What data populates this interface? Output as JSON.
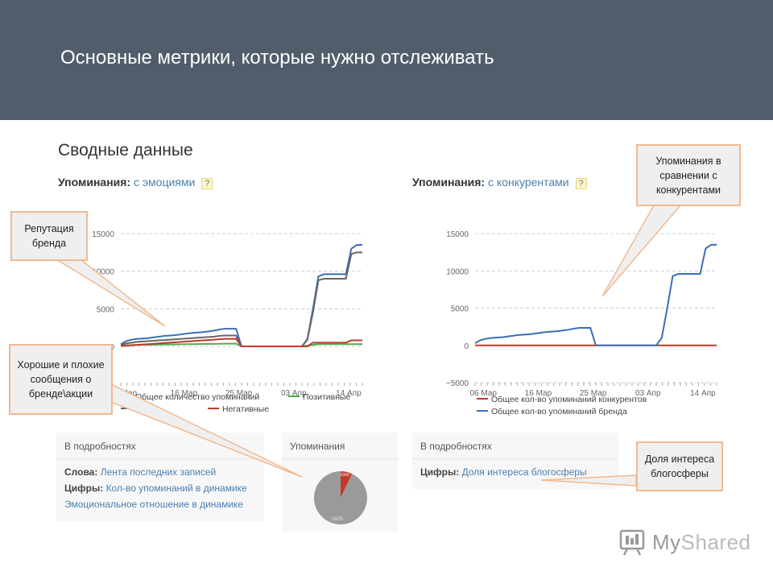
{
  "slide": {
    "title": "Основные метрики, которые нужно отслеживать",
    "panel_title": "Сводные данные"
  },
  "chart_left": {
    "heading_label": "Упоминания:",
    "heading_link": "с эмоциями",
    "help": "?"
  },
  "chart_right": {
    "heading_label": "Упоминания:",
    "heading_link": "с конкурентами",
    "help": "?"
  },
  "chart_data": [
    {
      "type": "line",
      "title": "Упоминания: с эмоциями",
      "x_ticks": [
        "Мар",
        "16 Мар",
        "25 Мар",
        "03 Апр",
        "14 Апр"
      ],
      "y_ticks": [
        "0",
        "5000",
        "10000",
        "15000"
      ],
      "ylim": [
        0,
        15000
      ],
      "x": [
        1,
        2,
        3,
        4,
        5,
        6,
        7,
        8,
        9,
        10,
        11,
        12,
        13,
        14,
        15,
        16,
        17,
        18,
        19,
        20,
        21,
        22,
        23,
        24,
        25,
        26,
        27,
        28,
        29,
        30,
        31,
        32,
        33,
        34,
        35,
        36,
        37,
        38,
        39,
        40,
        41,
        42,
        43,
        44,
        45
      ],
      "series": [
        {
          "name": "Общее количество упоминаний",
          "color": "#3a6fb7",
          "values": [
            300,
            700,
            900,
            1000,
            1050,
            1100,
            1200,
            1300,
            1400,
            1450,
            1500,
            1600,
            1700,
            1800,
            1850,
            1900,
            2000,
            2100,
            2250,
            2350,
            2350,
            2350,
            0,
            0,
            0,
            0,
            0,
            0,
            0,
            0,
            0,
            0,
            0,
            0,
            1000,
            5000,
            9300,
            9600,
            9600,
            9600,
            9600,
            9600,
            13000,
            13500,
            13500
          ]
        },
        {
          "name": "Позитивные",
          "color": "#4caf50",
          "values": [
            100,
            150,
            180,
            200,
            210,
            220,
            230,
            240,
            250,
            260,
            270,
            280,
            290,
            300,
            310,
            320,
            330,
            340,
            350,
            360,
            360,
            360,
            0,
            0,
            0,
            0,
            0,
            0,
            0,
            0,
            0,
            0,
            0,
            0,
            100,
            200,
            300,
            300,
            300,
            300,
            300,
            300,
            300,
            300,
            300
          ]
        },
        {
          "name": "Нейтральные",
          "color": "#666666",
          "values": [
            200,
            400,
            500,
            600,
            650,
            700,
            750,
            800,
            850,
            900,
            950,
            1000,
            1050,
            1100,
            1150,
            1200,
            1250,
            1300,
            1400,
            1450,
            1450,
            1450,
            0,
            0,
            0,
            0,
            0,
            0,
            0,
            0,
            0,
            0,
            0,
            0,
            900,
            4500,
            8800,
            9000,
            9000,
            9000,
            9000,
            9000,
            12300,
            12500,
            12500
          ]
        },
        {
          "name": "Негативные",
          "color": "#c0392b",
          "values": [
            50,
            100,
            150,
            200,
            250,
            300,
            350,
            400,
            450,
            500,
            550,
            600,
            650,
            700,
            750,
            800,
            850,
            900,
            950,
            1000,
            1000,
            1000,
            0,
            0,
            0,
            0,
            0,
            0,
            0,
            0,
            0,
            0,
            0,
            0,
            0,
            500,
            500,
            500,
            500,
            500,
            500,
            500,
            800,
            800,
            800
          ]
        }
      ],
      "legend": [
        "Общее количество упоминаний",
        "Позитивные",
        "Негативные"
      ]
    },
    {
      "type": "line",
      "title": "Упоминания: с конкурентами",
      "x_ticks": [
        "06 Мар",
        "16 Мар",
        "25 Мар",
        "03 Апр",
        "14 Апр"
      ],
      "y_ticks": [
        "−5000",
        "0",
        "5000",
        "10000",
        "15000"
      ],
      "ylim": [
        -5000,
        15000
      ],
      "x": [
        1,
        2,
        3,
        4,
        5,
        6,
        7,
        8,
        9,
        10,
        11,
        12,
        13,
        14,
        15,
        16,
        17,
        18,
        19,
        20,
        21,
        22,
        23,
        24,
        25,
        26,
        27,
        28,
        29,
        30,
        31,
        32,
        33,
        34,
        35,
        36,
        37,
        38,
        39,
        40,
        41,
        42,
        43,
        44,
        45
      ],
      "series": [
        {
          "name": "Общее кол-во упоминаний конкурентов",
          "color": "#d0312d",
          "values": [
            0,
            0,
            0,
            0,
            0,
            0,
            0,
            0,
            0,
            0,
            0,
            0,
            0,
            0,
            0,
            0,
            0,
            0,
            0,
            0,
            0,
            0,
            0,
            0,
            0,
            0,
            0,
            0,
            0,
            0,
            0,
            0,
            0,
            0,
            0,
            0,
            0,
            0,
            0,
            0,
            0,
            0,
            0,
            0,
            0
          ]
        },
        {
          "name": "Общее кол-во упоминаний бренда",
          "color": "#3a6fb7",
          "values": [
            300,
            700,
            900,
            1000,
            1050,
            1100,
            1200,
            1300,
            1400,
            1450,
            1500,
            1600,
            1700,
            1800,
            1850,
            1900,
            2000,
            2100,
            2250,
            2350,
            2350,
            2350,
            0,
            0,
            0,
            0,
            0,
            0,
            0,
            0,
            0,
            0,
            0,
            0,
            1000,
            5000,
            9300,
            9600,
            9600,
            9600,
            9600,
            9600,
            13000,
            13500,
            13500
          ]
        }
      ]
    },
    {
      "type": "pie",
      "title": "Упоминания",
      "slices": [
        {
          "label": "1000",
          "value": 1000,
          "color": "#c0392b"
        },
        {
          "label": "13175",
          "value": 13175,
          "color": "#9a9a9a"
        }
      ]
    }
  ],
  "details_left": {
    "title": "В подробностях",
    "rows": [
      {
        "label": "Слова:",
        "link": "Лента последних записей"
      },
      {
        "label": "Цифры:",
        "link": "Кол-во упоминаний в динамике"
      },
      {
        "label": "",
        "link": "Эмоциональное отношение в динамике"
      }
    ]
  },
  "mentions_box": {
    "title": "Упоминания"
  },
  "details_right": {
    "title": "В подробностях",
    "rows": [
      {
        "label": "Цифры:",
        "link": "Доля интереса блогосферы"
      }
    ]
  },
  "callouts": {
    "reputation": "Репутация бренда",
    "good_bad": "Хорошие и плохие сообщения о бренде\\акции",
    "competitors": "Упоминания в сравнении с конкурентами",
    "share": "Доля интереса блогосферы"
  },
  "logo": {
    "text_main": "My",
    "text_accent": "Shared"
  },
  "colors": {
    "header_bg": "#525d6b",
    "callout_border": "#f2b98f",
    "link": "#4a7fb0"
  }
}
